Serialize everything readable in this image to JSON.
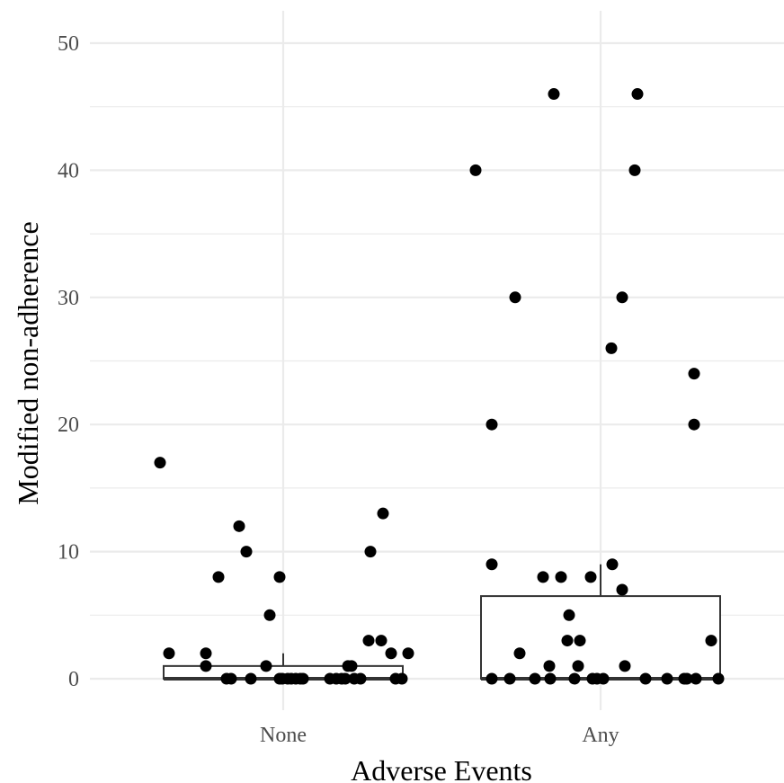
{
  "chart_data": {
    "type": "boxplot",
    "title": "",
    "xlabel": "Adverse Events",
    "ylabel": "Modified non-adherence",
    "categories": [
      "None",
      "Any"
    ],
    "ylim": [
      -2.5,
      52.5
    ],
    "y_ticks": [
      "0",
      "10",
      "20",
      "30",
      "40",
      "50"
    ],
    "grid": true,
    "legend": "none",
    "boxes": [
      {
        "category": "None",
        "min": 0,
        "q1": 0,
        "median": 0,
        "q3": 1,
        "max": 2
      },
      {
        "category": "Any",
        "min": 0,
        "q1": 0,
        "median": 0,
        "q3": 6.5,
        "max": 9
      }
    ],
    "points": [
      {
        "category": "None",
        "y": [
          17,
          2,
          2,
          1,
          8,
          12,
          10,
          0,
          0,
          0,
          5,
          1,
          8,
          0,
          0,
          0,
          0,
          0,
          0,
          0,
          0,
          0,
          1,
          1,
          0,
          0,
          0,
          0,
          10,
          3,
          3,
          13,
          2,
          0,
          0,
          2
        ]
      },
      {
        "category": "Any",
        "y": [
          40,
          20,
          9,
          0,
          0,
          30,
          2,
          0,
          46,
          8,
          8,
          1,
          0,
          5,
          3,
          0,
          1,
          3,
          8,
          0,
          0,
          26,
          0,
          9,
          30,
          7,
          1,
          40,
          46,
          0,
          0,
          0,
          24,
          20,
          0,
          0,
          3,
          0
        ]
      }
    ]
  }
}
